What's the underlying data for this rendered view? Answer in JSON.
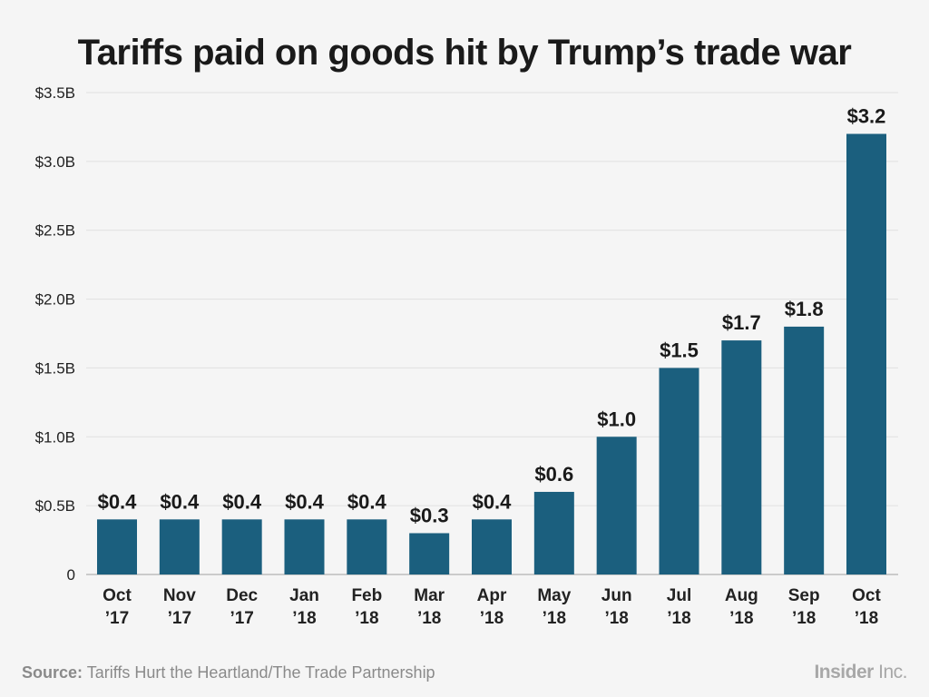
{
  "source": {
    "label": "Source:",
    "text": "Tariffs Hurt the Heartland/The Trade Partnership"
  },
  "logo": {
    "brand": "Insider",
    "suffix": "Inc."
  },
  "colors": {
    "bar": "#1b5f7e",
    "grid": "#e0e0e0",
    "axis": "#bdbdbd"
  },
  "chart_data": {
    "type": "bar",
    "title": "Tariffs paid on goods hit by Trump’s trade war",
    "categories": [
      [
        "Oct",
        "’17"
      ],
      [
        "Nov",
        "’17"
      ],
      [
        "Dec",
        "’17"
      ],
      [
        "Jan",
        "’18"
      ],
      [
        "Feb",
        "’18"
      ],
      [
        "Mar",
        "’18"
      ],
      [
        "Apr",
        "’18"
      ],
      [
        "May",
        "’18"
      ],
      [
        "Jun",
        "’18"
      ],
      [
        "Jul",
        "’18"
      ],
      [
        "Aug",
        "’18"
      ],
      [
        "Sep",
        "’18"
      ],
      [
        "Oct",
        "’18"
      ]
    ],
    "values": [
      0.4,
      0.4,
      0.4,
      0.4,
      0.4,
      0.3,
      0.4,
      0.6,
      1.0,
      1.5,
      1.7,
      1.8,
      3.2
    ],
    "data_labels": [
      "$0.4",
      "$0.4",
      "$0.4",
      "$0.4",
      "$0.4",
      "$0.3",
      "$0.4",
      "$0.6",
      "$1.0",
      "$1.5",
      "$1.7",
      "$1.8",
      "$3.2"
    ],
    "yticks": [
      0,
      0.5,
      1.0,
      1.5,
      2.0,
      2.5,
      3.0,
      3.5
    ],
    "ytick_labels": [
      "0",
      "$0.5B",
      "$1.0B",
      "$1.5B",
      "$2.0B",
      "$2.5B",
      "$3.0B",
      "$3.5B"
    ],
    "ylim": [
      0,
      3.5
    ],
    "xlabel": "",
    "ylabel": "",
    "grid": true
  }
}
